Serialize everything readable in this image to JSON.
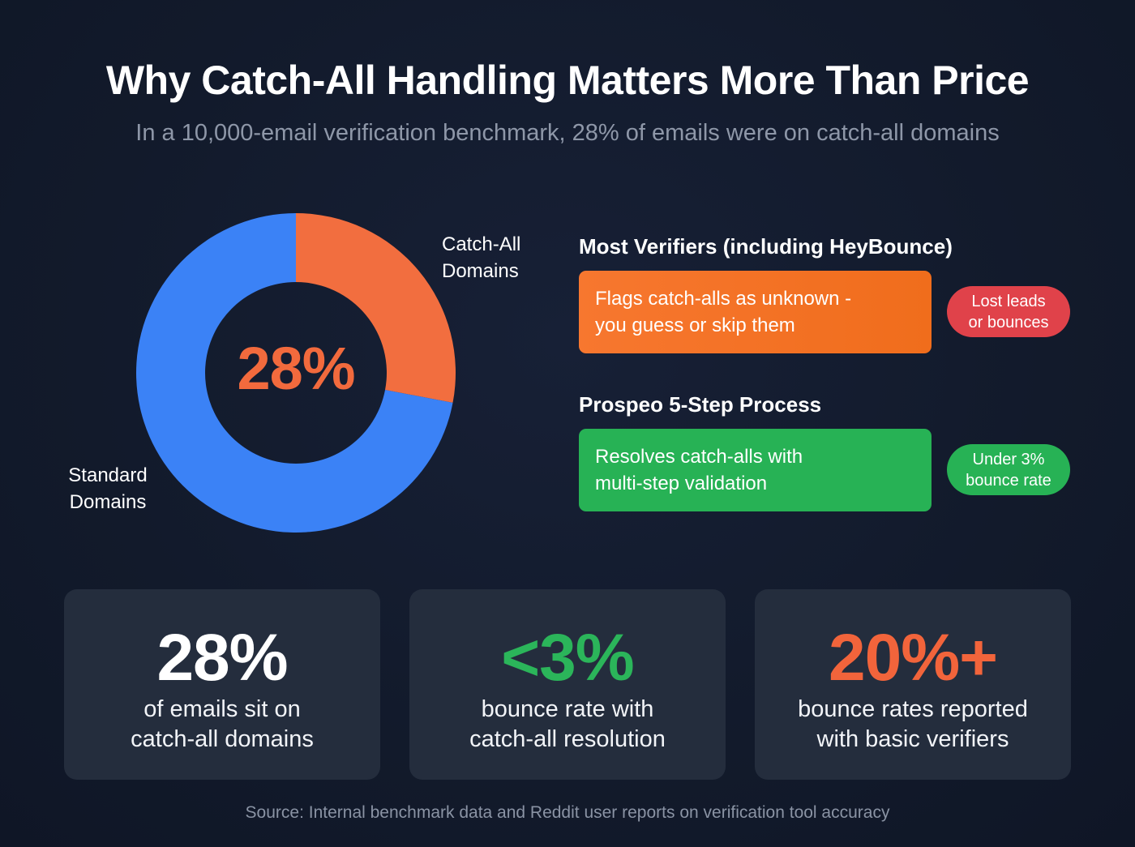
{
  "title": "Why Catch-All Handling Matters More Than Price",
  "subtitle": "In a 10,000-email verification benchmark, 28% of emails were on catch-all domains",
  "chart_data": {
    "type": "pie",
    "variant": "donut",
    "slices": [
      {
        "label_line1": "Catch-All",
        "label_line2": "Domains",
        "value": 28,
        "color": "#f26e3f"
      },
      {
        "label_line1": "Standard",
        "label_line2": "Domains",
        "value": 72,
        "color": "#3b82f6"
      }
    ],
    "center_label": "28%"
  },
  "comparison": {
    "most": {
      "heading": "Most Verifiers (including HeyBounce)",
      "box_line1": "Flags catch-alls as unknown -",
      "box_line2": "you guess or skip them",
      "pill_line1": "Lost leads",
      "pill_line2": "or bounces"
    },
    "prospeo": {
      "heading": "Prospeo 5-Step Process",
      "box_line1": "Resolves catch-alls with",
      "box_line2": "multi-step validation",
      "pill_line1": "Under 3%",
      "pill_line2": "bounce rate"
    }
  },
  "stats": [
    {
      "value": "28%",
      "line1": "of emails sit on",
      "line2": "catch-all domains",
      "color": "#ffffff"
    },
    {
      "value": "<3%",
      "line1": "bounce rate with",
      "line2": "catch-all resolution",
      "color": "#2bb55a"
    },
    {
      "value": "20%+",
      "line1": "bounce rates reported",
      "line2": "with basic verifiers",
      "color": "#f2643b"
    }
  ],
  "source": "Source: Internal benchmark data and Reddit user reports on verification tool accuracy"
}
